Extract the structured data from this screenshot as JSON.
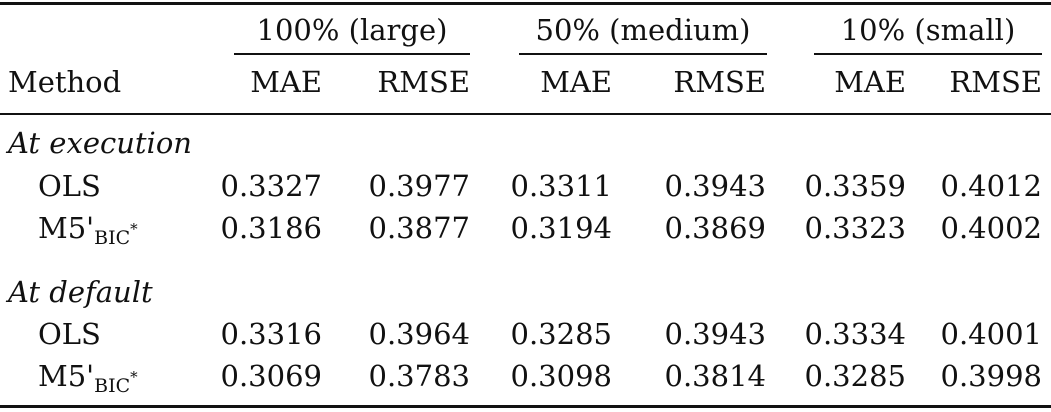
{
  "table": {
    "groups": [
      {
        "label": "100% (large)"
      },
      {
        "label": "50% (medium)"
      },
      {
        "label": "10% (small)"
      }
    ],
    "method_header": "Method",
    "metric_headers": [
      "MAE",
      "RMSE",
      "MAE",
      "RMSE",
      "MAE",
      "RMSE"
    ],
    "sections": [
      {
        "title": "At execution",
        "rows": [
          {
            "method": "OLS",
            "values": [
              "0.3327",
              "0.3977",
              "0.3311",
              "0.3943",
              "0.3359",
              "0.4012"
            ]
          },
          {
            "method": "M5'",
            "method_sub": "BIC",
            "method_sup": "*",
            "values": [
              "0.3186",
              "0.3877",
              "0.3194",
              "0.3869",
              "0.3323",
              "0.4002"
            ]
          }
        ]
      },
      {
        "title": "At default",
        "rows": [
          {
            "method": "OLS",
            "values": [
              "0.3316",
              "0.3964",
              "0.3285",
              "0.3943",
              "0.3334",
              "0.4001"
            ]
          },
          {
            "method": "M5'",
            "method_sub": "BIC",
            "method_sup": "*",
            "values": [
              "0.3069",
              "0.3783",
              "0.3098",
              "0.3814",
              "0.3285",
              "0.3998"
            ]
          }
        ]
      }
    ]
  }
}
